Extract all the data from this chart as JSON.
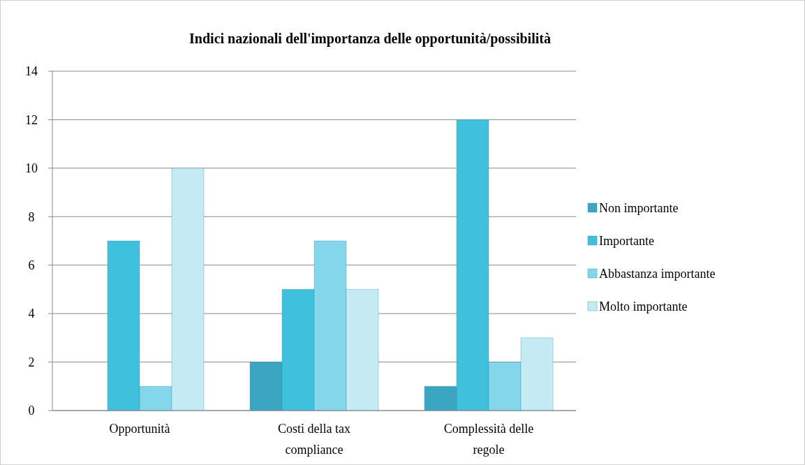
{
  "chart_data": {
    "type": "bar",
    "title": "Indici nazionali dell'importanza delle opportunità/possibilità",
    "categories": [
      "Opportunità",
      "Costi della tax compliance",
      "Complessità delle regole"
    ],
    "series": [
      {
        "name": "Non importante",
        "color": "#3aa6c2",
        "values": [
          0,
          2,
          1
        ]
      },
      {
        "name": "Importante",
        "color": "#3fc0dd",
        "values": [
          7,
          5,
          12
        ]
      },
      {
        "name": "Abbastanza importante",
        "color": "#84d6ea",
        "values": [
          1,
          7,
          2
        ]
      },
      {
        "name": "Molto importante",
        "color": "#c4ebf4",
        "values": [
          10,
          5,
          3
        ]
      }
    ],
    "ylim": [
      0,
      14
    ],
    "yticks": [
      0,
      2,
      4,
      6,
      8,
      10,
      12,
      14
    ],
    "grid": "y",
    "legend": "right"
  }
}
